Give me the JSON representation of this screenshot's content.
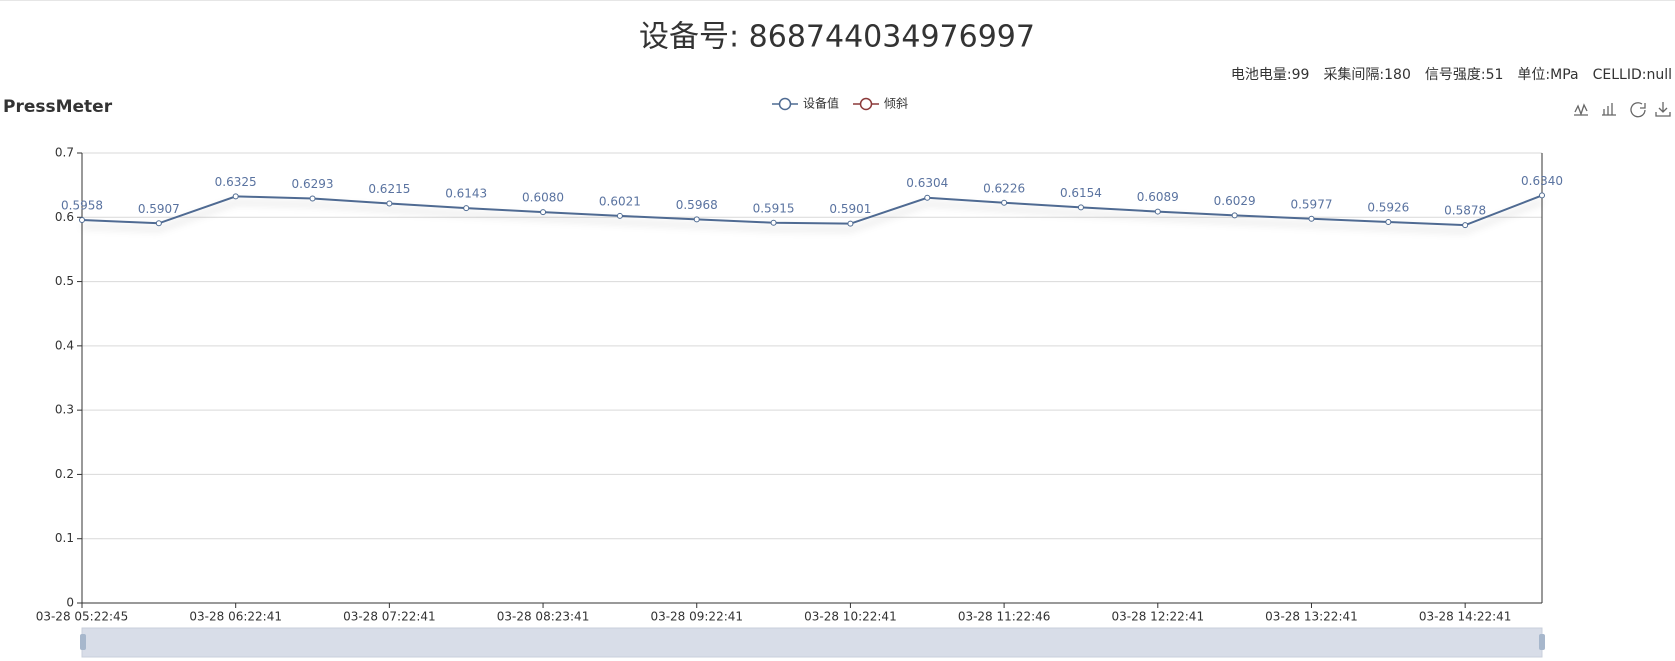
{
  "header": {
    "title": "设备号: 868744034976997",
    "info": [
      "电池电量:99",
      "采集间隔:180",
      "信号强度:51",
      "单位:MPa",
      "CELLID:null"
    ]
  },
  "chart_data": {
    "type": "line",
    "title": "PressMeter",
    "categories": [
      "03-28 05:22:45",
      null,
      "03-28 06:22:41",
      null,
      "03-28 07:22:41",
      null,
      "03-28 08:23:41",
      null,
      "03-28 09:22:41",
      null,
      "03-28 10:22:41",
      null,
      "03-28 11:22:46",
      null,
      "03-28 12:22:41",
      null,
      "03-28 13:22:41",
      null,
      "03-28 14:22:41",
      null
    ],
    "series": [
      {
        "name": "设备值",
        "color": "#4f6b92",
        "values": [
          0.5958,
          0.5907,
          0.6325,
          0.6293,
          0.6215,
          0.6143,
          0.608,
          0.6021,
          0.5968,
          0.5915,
          0.5901,
          0.6304,
          0.6226,
          0.6154,
          0.6089,
          0.6029,
          0.5977,
          0.5926,
          0.5878,
          0.634
        ],
        "value_labels": [
          "0.5958",
          "0.5907",
          "0.6325",
          "0.6293",
          "0.6215",
          "0.6143",
          "0.6080",
          "0.6021",
          "0.5968",
          "0.5915",
          "0.5901",
          "0.6304",
          "0.6226",
          "0.6154",
          "0.6089",
          "0.6029",
          "0.5977",
          "0.5926",
          "0.5878",
          "0.6340"
        ]
      },
      {
        "name": "倾斜",
        "color": "#8b3a3a",
        "values": [
          null,
          null,
          null,
          null,
          null,
          null,
          null,
          null,
          null,
          null,
          null,
          null,
          null,
          null,
          null,
          null,
          null,
          null,
          null,
          null
        ]
      }
    ],
    "ylim": [
      0,
      0.7
    ],
    "yticks": [
      0,
      0.1,
      0.2,
      0.3,
      0.4,
      0.5,
      0.6,
      0.7
    ],
    "grid": true
  }
}
